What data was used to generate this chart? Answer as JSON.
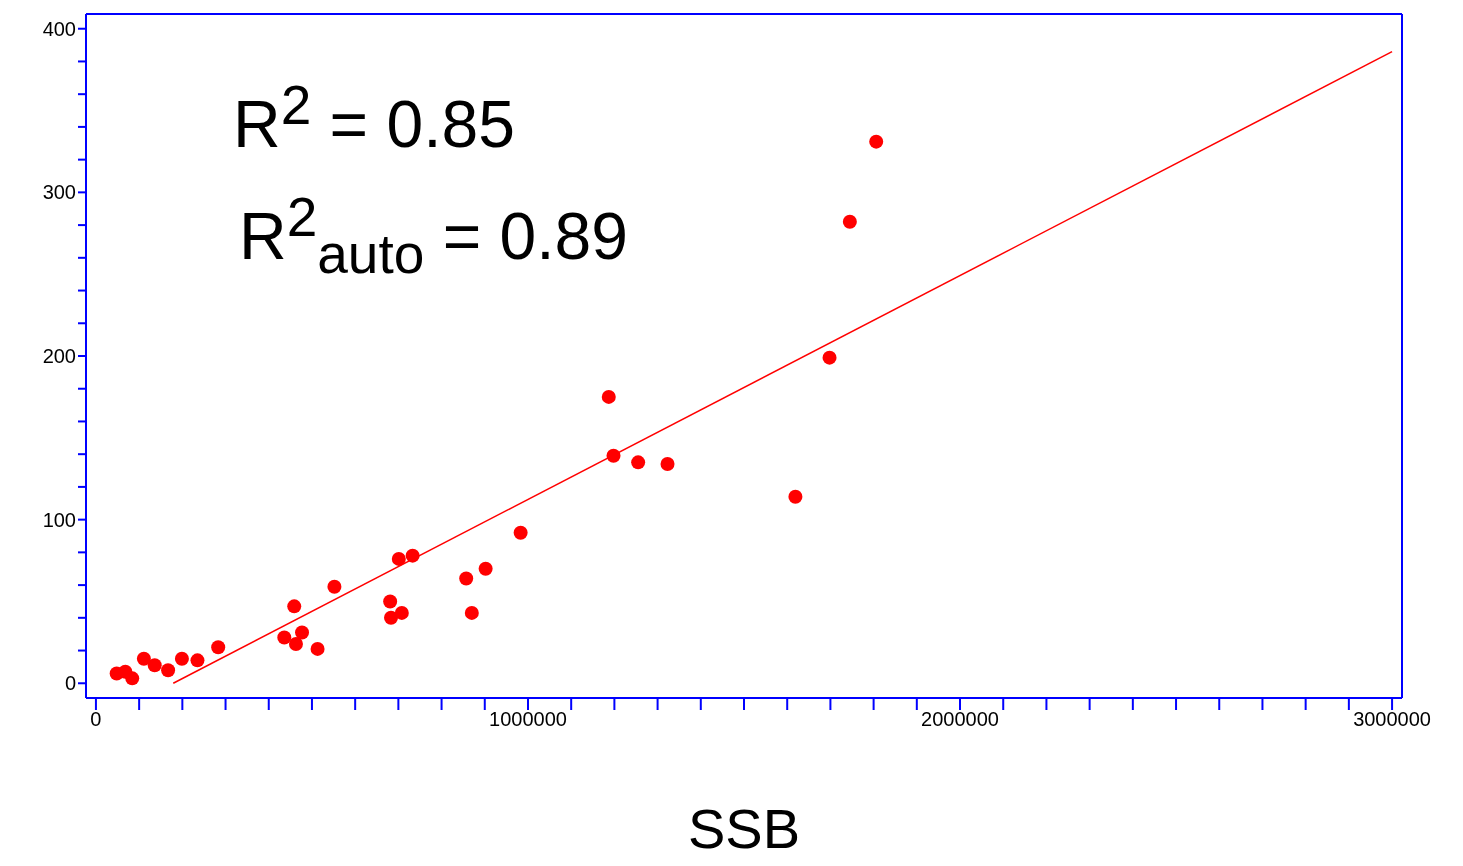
{
  "chart_data": {
    "type": "scatter",
    "xlabel": "SSB",
    "annotations": [
      "R$^{2}$ = 0.85",
      "R$^{2}$$_{auto}$ = 0.89"
    ],
    "xlim": [
      -23000,
      3023000
    ],
    "ylim": [
      -9,
      409
    ],
    "xticks": [
      0,
      {
        "value": 100000,
        "label": null
      },
      {
        "value": 200000,
        "label": null
      },
      {
        "value": 300000,
        "label": null
      },
      {
        "value": 400000,
        "label": null
      },
      {
        "value": 500000,
        "label": null
      },
      {
        "value": 600000,
        "label": null
      },
      {
        "value": 700000,
        "label": null
      },
      {
        "value": 800000,
        "label": null
      },
      {
        "value": 900000,
        "label": null
      },
      1000000,
      {
        "value": 1100000,
        "label": null
      },
      {
        "value": 1200000,
        "label": null
      },
      {
        "value": 1300000,
        "label": null
      },
      {
        "value": 1400000,
        "label": null
      },
      {
        "value": 1500000,
        "label": null
      },
      {
        "value": 1600000,
        "label": null
      },
      {
        "value": 1700000,
        "label": null
      },
      {
        "value": 1800000,
        "label": null
      },
      {
        "value": 1900000,
        "label": null
      },
      2000000,
      {
        "value": 2100000,
        "label": null
      },
      {
        "value": 2200000,
        "label": null
      },
      {
        "value": 2300000,
        "label": null
      },
      {
        "value": 2400000,
        "label": null
      },
      {
        "value": 2500000,
        "label": null
      },
      {
        "value": 2600000,
        "label": null
      },
      {
        "value": 2700000,
        "label": null
      },
      {
        "value": 2800000,
        "label": null
      },
      {
        "value": 2900000,
        "label": null
      },
      3000000
    ],
    "yticks": [
      0,
      {
        "value": 20,
        "label": null
      },
      {
        "value": 40,
        "label": null
      },
      {
        "value": 60,
        "label": null
      },
      {
        "value": 80,
        "label": null
      },
      100,
      {
        "value": 120,
        "label": null
      },
      {
        "value": 140,
        "label": null
      },
      {
        "value": 160,
        "label": null
      },
      {
        "value": 180,
        "label": null
      },
      200,
      {
        "value": 220,
        "label": null
      },
      {
        "value": 240,
        "label": null
      },
      {
        "value": 260,
        "label": null
      },
      {
        "value": 280,
        "label": null
      },
      300,
      {
        "value": 320,
        "label": null
      },
      {
        "value": 340,
        "label": null
      },
      {
        "value": 360,
        "label": null
      },
      {
        "value": 380,
        "label": null
      },
      400
    ],
    "grid": false,
    "series": [
      {
        "marker": "circle",
        "color": "#ff0000",
        "x": [
          48000,
          68000,
          84000,
          111000,
          136000,
          167000,
          199000,
          235000,
          283000,
          436000,
          459000,
          463000,
          477000,
          513000,
          552000,
          681000,
          683000,
          701000,
          708000,
          733000,
          857000,
          870000,
          902000,
          983000,
          1187000,
          1198000,
          1255000,
          1323000,
          1619000,
          1698000,
          1745000,
          1806000
        ],
        "values": [
          6,
          7,
          3,
          15,
          11,
          8,
          15,
          14,
          22,
          28,
          47,
          24,
          31,
          21,
          59,
          50,
          40,
          76,
          43,
          78,
          64,
          43,
          70,
          92,
          175,
          139,
          135,
          134,
          114,
          199,
          282,
          331
        ]
      },
      {
        "type": "line",
        "color": "#ff0000",
        "x": [
          179000,
          3000000
        ],
        "values": [
          0,
          386
        ]
      }
    ]
  }
}
